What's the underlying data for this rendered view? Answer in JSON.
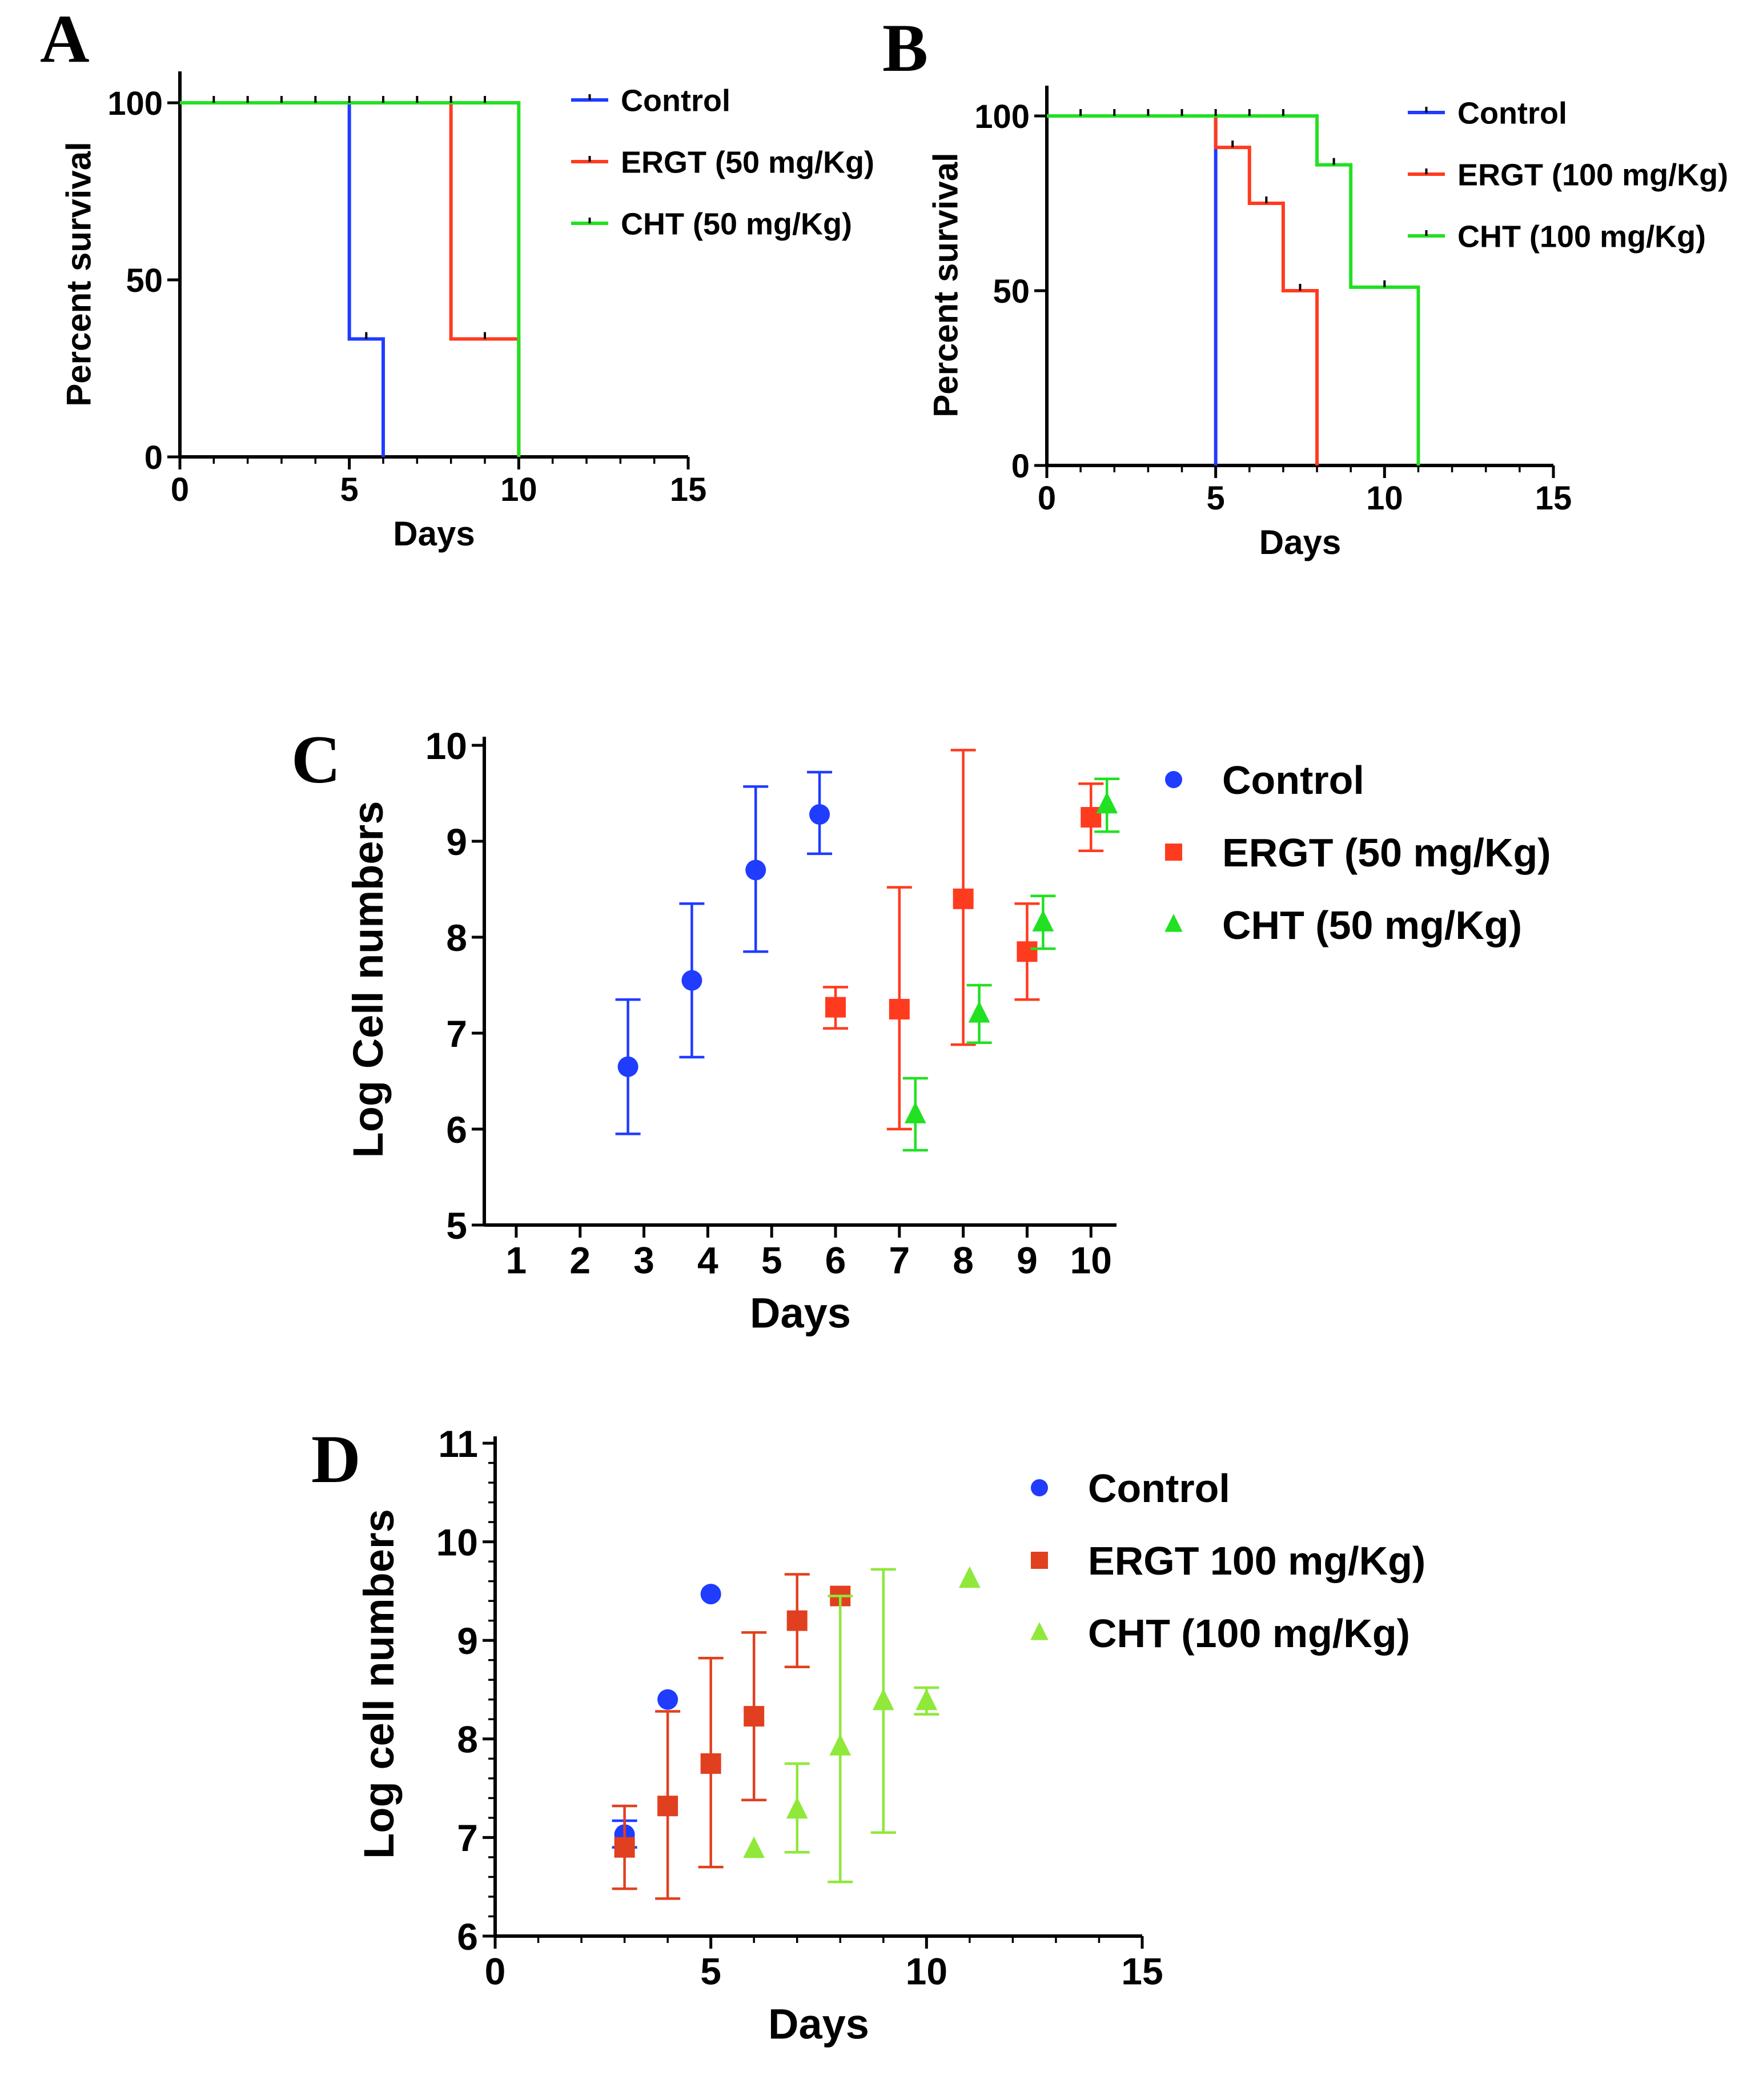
{
  "colors": {
    "control": "#1f3cff",
    "ergt": "#ff3b1f",
    "cht": "#22e022",
    "ergt_d": "#e0401f",
    "cht_d": "#8fe83a"
  },
  "chart_data": [
    {
      "id": "A",
      "panel_label": "A",
      "type": "line",
      "subtype": "kaplan-meier",
      "xlabel": "Days",
      "ylabel": "Percent survival",
      "xlim": [
        0,
        15
      ],
      "ylim": [
        0,
        100
      ],
      "xticks": [
        "0",
        "5",
        "10",
        "15"
      ],
      "yticks": [
        "0",
        "50",
        "100"
      ],
      "legend_position": "top-right",
      "series": [
        {
          "name": "Control",
          "color_key": "control",
          "steps": [
            [
              0,
              100
            ],
            [
              5,
              100
            ],
            [
              5,
              33.3
            ],
            [
              6,
              33.3
            ],
            [
              6,
              0
            ]
          ]
        },
        {
          "name": "ERGT (50 mg/Kg)",
          "color_key": "ergt",
          "steps": [
            [
              0,
              100
            ],
            [
              8,
              100
            ],
            [
              8,
              33.3
            ],
            [
              10,
              33.3
            ],
            [
              10,
              0
            ]
          ]
        },
        {
          "name": "CHT (50 mg/Kg)",
          "color_key": "cht",
          "steps": [
            [
              0,
              100
            ],
            [
              10,
              100
            ],
            [
              10,
              0
            ]
          ]
        }
      ]
    },
    {
      "id": "B",
      "panel_label": "B",
      "type": "line",
      "subtype": "kaplan-meier",
      "xlabel": "Days",
      "ylabel": "Percent survival",
      "xlim": [
        0,
        15
      ],
      "ylim": [
        0,
        100
      ],
      "xticks": [
        "0",
        "5",
        "10",
        "15"
      ],
      "yticks": [
        "0",
        "50",
        "100"
      ],
      "legend_position": "top-right",
      "series": [
        {
          "name": "Control",
          "color_key": "control",
          "steps": [
            [
              0,
              100
            ],
            [
              5,
              100
            ],
            [
              5,
              0
            ]
          ]
        },
        {
          "name": "ERGT (100 mg/Kg)",
          "color_key": "ergt",
          "steps": [
            [
              0,
              100
            ],
            [
              5,
              100
            ],
            [
              5,
              91
            ],
            [
              6,
              91
            ],
            [
              6,
              75
            ],
            [
              7,
              75
            ],
            [
              7,
              50
            ],
            [
              8,
              50
            ],
            [
              8,
              0
            ]
          ]
        },
        {
          "name": "CHT (100 mg/Kg)",
          "color_key": "cht",
          "steps": [
            [
              0,
              100
            ],
            [
              8,
              100
            ],
            [
              8,
              86
            ],
            [
              9,
              86
            ],
            [
              9,
              51
            ],
            [
              11,
              51
            ],
            [
              11,
              0
            ]
          ]
        }
      ]
    },
    {
      "id": "C",
      "panel_label": "C",
      "type": "scatter",
      "xlabel": "Days",
      "ylabel": "Log Cell numbers",
      "xlim": [
        0.5,
        10.4
      ],
      "ylim": [
        5,
        10
      ],
      "xticks": [
        "1",
        "2",
        "3",
        "4",
        "5",
        "6",
        "7",
        "8",
        "9",
        "10"
      ],
      "yticks": [
        "5",
        "6",
        "7",
        "8",
        "9",
        "10"
      ],
      "legend_position": "top-right",
      "series": [
        {
          "name": "Control",
          "color_key": "control",
          "marker": "circle",
          "points": [
            {
              "x": 2.75,
              "y": 6.65,
              "lo": 5.95,
              "hi": 7.35
            },
            {
              "x": 3.75,
              "y": 7.55,
              "lo": 6.75,
              "hi": 8.35
            },
            {
              "x": 4.75,
              "y": 8.7,
              "lo": 7.85,
              "hi": 9.57
            },
            {
              "x": 5.75,
              "y": 9.28,
              "lo": 8.87,
              "hi": 9.72
            }
          ]
        },
        {
          "name": "ERGT (50 mg/Kg)",
          "color_key": "ergt",
          "marker": "square",
          "points": [
            {
              "x": 6.0,
              "y": 7.27,
              "lo": 7.05,
              "hi": 7.48
            },
            {
              "x": 7.0,
              "y": 7.25,
              "lo": 6.0,
              "hi": 8.52
            },
            {
              "x": 8.0,
              "y": 8.4,
              "lo": 6.88,
              "hi": 9.95
            },
            {
              "x": 9.0,
              "y": 7.85,
              "lo": 7.35,
              "hi": 8.35
            },
            {
              "x": 10.0,
              "y": 9.25,
              "lo": 8.9,
              "hi": 9.6
            }
          ]
        },
        {
          "name": "CHT (50 mg/Kg)",
          "color_key": "cht",
          "marker": "triangle",
          "points": [
            {
              "x": 7.25,
              "y": 6.15,
              "lo": 5.78,
              "hi": 6.53
            },
            {
              "x": 8.25,
              "y": 7.2,
              "lo": 6.9,
              "hi": 7.5
            },
            {
              "x": 9.25,
              "y": 8.15,
              "lo": 7.88,
              "hi": 8.43
            },
            {
              "x": 10.25,
              "y": 9.38,
              "lo": 9.1,
              "hi": 9.65
            }
          ]
        }
      ]
    },
    {
      "id": "D",
      "panel_label": "D",
      "type": "scatter",
      "xlabel": "Days",
      "ylabel": "Log cell numbers",
      "xlim": [
        0,
        15
      ],
      "ylim": [
        6,
        11
      ],
      "xticks": [
        "0",
        "5",
        "10",
        "15"
      ],
      "yticks": [
        "6",
        "7",
        "8",
        "9",
        "10",
        "11"
      ],
      "legend_position": "top-right",
      "series": [
        {
          "name": "Control",
          "color_key": "control",
          "marker": "circle",
          "points": [
            {
              "x": 3,
              "y": 7.03,
              "lo": 6.9,
              "hi": 7.17
            },
            {
              "x": 4,
              "y": 8.4
            },
            {
              "x": 5,
              "y": 9.47
            }
          ]
        },
        {
          "name": "ERGT 100 mg/Kg)",
          "color_key": "ergt_d",
          "marker": "square",
          "points": [
            {
              "x": 3,
              "y": 6.9,
              "lo": 6.48,
              "hi": 7.32
            },
            {
              "x": 4,
              "y": 7.32,
              "lo": 6.38,
              "hi": 8.28
            },
            {
              "x": 5,
              "y": 7.75,
              "lo": 6.7,
              "hi": 8.82
            },
            {
              "x": 6,
              "y": 8.23,
              "lo": 7.38,
              "hi": 9.08
            },
            {
              "x": 7,
              "y": 9.2,
              "lo": 8.73,
              "hi": 9.67
            },
            {
              "x": 8,
              "y": 9.45
            }
          ]
        },
        {
          "name": "CHT (100 mg/Kg)",
          "color_key": "cht_d",
          "marker": "triangle",
          "points": [
            {
              "x": 6,
              "y": 6.88
            },
            {
              "x": 7,
              "y": 7.28,
              "lo": 6.85,
              "hi": 7.75
            },
            {
              "x": 8,
              "y": 7.92,
              "lo": 6.55,
              "hi": 9.45
            },
            {
              "x": 9,
              "y": 8.38,
              "lo": 7.05,
              "hi": 9.72
            },
            {
              "x": 10,
              "y": 8.38,
              "lo": 8.25,
              "hi": 8.52
            },
            {
              "x": 11,
              "y": 9.62
            }
          ]
        }
      ]
    }
  ]
}
